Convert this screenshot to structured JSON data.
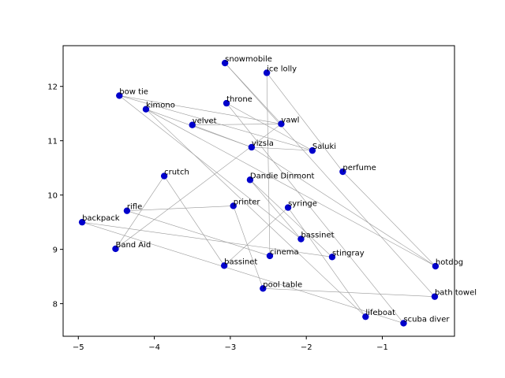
{
  "chart_data": {
    "type": "scatter",
    "title": "",
    "xlabel": "",
    "ylabel": "",
    "xlim": [
      -5.2,
      -0.05
    ],
    "ylim": [
      7.4,
      12.75
    ],
    "xticks": [
      -5,
      -4,
      -3,
      -2,
      -1
    ],
    "yticks": [
      8,
      9,
      10,
      11,
      12
    ],
    "xtick_labels": [
      "−5",
      "−4",
      "−3",
      "−2",
      "−1"
    ],
    "ytick_labels": [
      "8",
      "9",
      "10",
      "11",
      "12"
    ],
    "grid": false,
    "point_color": "#0000cc",
    "edge_color": "#999999",
    "points": [
      {
        "label": "snowmobile",
        "x": -3.07,
        "y": 12.43
      },
      {
        "label": "ice lolly",
        "x": -2.52,
        "y": 12.25
      },
      {
        "label": "bow tie",
        "x": -4.46,
        "y": 11.83
      },
      {
        "label": "kimono",
        "x": -4.11,
        "y": 11.58
      },
      {
        "label": "throne",
        "x": -3.05,
        "y": 11.69
      },
      {
        "label": "vawl",
        "x": -2.33,
        "y": 11.31
      },
      {
        "label": "velvet",
        "x": -3.5,
        "y": 11.29
      },
      {
        "label": "vizsla",
        "x": -2.72,
        "y": 10.88
      },
      {
        "label": "Saluki",
        "x": -1.92,
        "y": 10.82
      },
      {
        "label": "perfume",
        "x": -1.52,
        "y": 10.43
      },
      {
        "label": "crutch",
        "x": -3.87,
        "y": 10.35
      },
      {
        "label": "Dandie Dinmont",
        "x": -2.74,
        "y": 10.28
      },
      {
        "label": "printer",
        "x": -2.96,
        "y": 9.8
      },
      {
        "label": "syringe",
        "x": -2.24,
        "y": 9.77
      },
      {
        "label": "rifle",
        "x": -4.36,
        "y": 9.71
      },
      {
        "label": "backpack",
        "x": -4.95,
        "y": 9.5
      },
      {
        "label": "bassinet",
        "x": -2.07,
        "y": 9.19
      },
      {
        "label": "Band Aid",
        "x": -4.51,
        "y": 9.01
      },
      {
        "label": "stingray",
        "x": -1.66,
        "y": 8.86
      },
      {
        "label": "cinema",
        "x": -2.48,
        "y": 8.88
      },
      {
        "label": "bassinet",
        "x": -3.08,
        "y": 8.7
      },
      {
        "label": "hotdog",
        "x": -0.3,
        "y": 8.69
      },
      {
        "label": "pool table",
        "x": -2.57,
        "y": 8.28
      },
      {
        "label": "bath towel",
        "x": -0.31,
        "y": 8.13
      },
      {
        "label": "lifeboat",
        "x": -1.22,
        "y": 7.76
      },
      {
        "label": "scuba diver",
        "x": -0.72,
        "y": 7.64
      }
    ],
    "edges": [
      [
        2,
        8
      ],
      [
        2,
        5
      ],
      [
        3,
        24
      ],
      [
        3,
        7
      ],
      [
        0,
        23
      ],
      [
        0,
        5
      ],
      [
        1,
        9
      ],
      [
        1,
        19
      ],
      [
        4,
        8
      ],
      [
        4,
        25
      ],
      [
        6,
        7
      ],
      [
        6,
        5
      ],
      [
        7,
        21
      ],
      [
        7,
        8
      ],
      [
        5,
        17
      ],
      [
        9,
        21
      ],
      [
        10,
        20
      ],
      [
        10,
        17
      ],
      [
        11,
        16
      ],
      [
        11,
        18
      ],
      [
        12,
        14
      ],
      [
        12,
        22
      ],
      [
        13,
        20
      ],
      [
        13,
        24
      ],
      [
        14,
        19
      ],
      [
        15,
        18
      ],
      [
        15,
        25
      ],
      [
        22,
        23
      ],
      [
        16,
        2
      ],
      [
        21,
        3
      ]
    ]
  }
}
